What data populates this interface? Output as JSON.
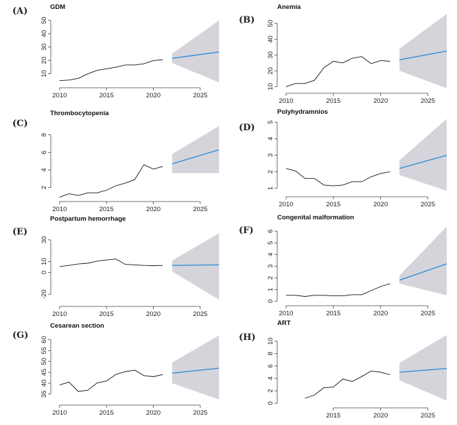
{
  "figure": {
    "title": "Forecast panels"
  },
  "colors": {
    "history": "#111111",
    "forecast": "#2b8ad8",
    "band": "#d4d4da"
  },
  "chart_data": [
    {
      "label": "(A)",
      "title": "GDM",
      "type": "line",
      "xlim": [
        2009.5,
        2027.5
      ],
      "ylim": [
        2,
        55
      ],
      "xticks": [
        2010,
        2015,
        2020,
        2025
      ],
      "yticks": [
        10,
        20,
        30,
        40,
        50
      ],
      "history": {
        "x": [
          2010,
          2011,
          2012,
          2013,
          2014,
          2015,
          2016,
          2017,
          2018,
          2019,
          2020,
          2021
        ],
        "y": [
          4.8,
          5.2,
          6.5,
          9.8,
          12.5,
          13.7,
          14.8,
          16.5,
          16.5,
          17.5,
          19.8,
          20.5
        ]
      },
      "forecast": {
        "x": [
          2022,
          2027
        ],
        "y": [
          21.5,
          26.3
        ]
      },
      "band": {
        "x": [
          2022,
          2027
        ],
        "upper": [
          25,
          50
        ],
        "lower": [
          18,
          3.5
        ]
      }
    },
    {
      "label": "(B)",
      "title": "Anemia",
      "type": "line",
      "xlim": [
        2009.5,
        2027.5
      ],
      "ylim": [
        8,
        57
      ],
      "xticks": [
        2010,
        2015,
        2020,
        2025
      ],
      "yticks": [
        10,
        20,
        30,
        40,
        50
      ],
      "history": {
        "x": [
          2010,
          2011,
          2012,
          2013,
          2014,
          2015,
          2016,
          2017,
          2018,
          2019,
          2020,
          2021
        ],
        "y": [
          10,
          12,
          12,
          14,
          22,
          26,
          25,
          28,
          29,
          24.5,
          26.5,
          26
        ]
      },
      "forecast": {
        "x": [
          2022,
          2027
        ],
        "y": [
          27,
          32.5
        ]
      },
      "band": {
        "x": [
          2022,
          2027
        ],
        "upper": [
          34,
          56
        ],
        "lower": [
          20,
          9
        ]
      }
    },
    {
      "label": "(C)",
      "title": "Thrombocytopenia",
      "type": "line",
      "xlim": [
        2009.5,
        2027.5
      ],
      "ylim": [
        0.8,
        9.3
      ],
      "xticks": [
        2010,
        2015,
        2020,
        2025
      ],
      "yticks": [
        2,
        4,
        6,
        8
      ],
      "history": {
        "x": [
          2010,
          2011,
          2012,
          2013,
          2014,
          2015,
          2016,
          2017,
          2018,
          2019,
          2020,
          2021
        ],
        "y": [
          0.9,
          1.3,
          1.1,
          1.4,
          1.4,
          1.7,
          2.2,
          2.5,
          2.9,
          4.6,
          4.1,
          4.4
        ]
      },
      "forecast": {
        "x": [
          2022,
          2027
        ],
        "y": [
          4.7,
          6.3
        ]
      },
      "band": {
        "x": [
          2022,
          2027
        ],
        "upper": [
          5.8,
          9
        ],
        "lower": [
          3.65,
          3.65
        ]
      }
    },
    {
      "label": "(D)",
      "title": "Polyhydramnios",
      "type": "line",
      "xlim": [
        2009.5,
        2027.5
      ],
      "ylim": [
        0.7,
        5.3
      ],
      "xticks": [
        2010,
        2015,
        2020,
        2025
      ],
      "yticks": [
        1,
        2,
        3,
        4,
        5
      ],
      "history": {
        "x": [
          2010,
          2011,
          2012,
          2013,
          2014,
          2015,
          2016,
          2017,
          2018,
          2019,
          2020,
          2021
        ],
        "y": [
          2.2,
          2.05,
          1.6,
          1.6,
          1.2,
          1.15,
          1.2,
          1.4,
          1.4,
          1.7,
          1.9,
          2.0
        ]
      },
      "forecast": {
        "x": [
          2022,
          2027
        ],
        "y": [
          2.2,
          3.0
        ]
      },
      "band": {
        "x": [
          2022,
          2027
        ],
        "upper": [
          2.7,
          5.2
        ],
        "lower": [
          1.8,
          0.85
        ]
      }
    },
    {
      "label": "(E)",
      "title": "Postpartum hemorrhage",
      "type": "line",
      "xlim": [
        2009.5,
        2027.5
      ],
      "ylim": [
        -28,
        40
      ],
      "xticks": [
        2010,
        2015,
        2020,
        2025
      ],
      "yticks": [
        -20,
        0,
        10,
        30
      ],
      "history": {
        "x": [
          2010,
          2011,
          2012,
          2013,
          2014,
          2015,
          2016,
          2017,
          2018,
          2019,
          2020,
          2021
        ],
        "y": [
          5.5,
          6.5,
          7.8,
          8.5,
          10.5,
          11.5,
          12.5,
          7.5,
          7.0,
          6.5,
          6.3,
          6.5
        ]
      },
      "forecast": {
        "x": [
          2022,
          2027
        ],
        "y": [
          6.5,
          7.0
        ]
      },
      "band": {
        "x": [
          2022,
          2027
        ],
        "upper": [
          11,
          36
        ],
        "lower": [
          1,
          -25
        ]
      }
    },
    {
      "label": "(F)",
      "title": "Congenital malformation",
      "type": "line",
      "xlim": [
        2009.5,
        2027.5
      ],
      "ylim": [
        -0.1,
        6.6
      ],
      "xticks": [
        2010,
        2015,
        2020,
        2025
      ],
      "yticks": [
        0,
        1,
        2,
        3,
        4,
        5,
        6
      ],
      "history": {
        "x": [
          2010,
          2011,
          2012,
          2013,
          2014,
          2015,
          2016,
          2017,
          2018,
          2019,
          2020,
          2021
        ],
        "y": [
          0.5,
          0.5,
          0.4,
          0.5,
          0.5,
          0.45,
          0.45,
          0.55,
          0.55,
          0.9,
          1.25,
          1.5
        ]
      },
      "forecast": {
        "x": [
          2022,
          2027
        ],
        "y": [
          1.8,
          3.2
        ]
      },
      "band": {
        "x": [
          2022,
          2027
        ],
        "upper": [
          2.2,
          6.4
        ],
        "lower": [
          1.5,
          0.5
        ]
      }
    },
    {
      "label": "(G)",
      "title": "Cesarean section",
      "type": "line",
      "xlim": [
        2009.5,
        2027.5
      ],
      "ylim": [
        31.5,
        63
      ],
      "xticks": [
        2010,
        2015,
        2020,
        2025
      ],
      "yticks": [
        35,
        40,
        45,
        50,
        55,
        60
      ],
      "history": {
        "x": [
          2010,
          2011,
          2012,
          2013,
          2014,
          2015,
          2016,
          2017,
          2018,
          2019,
          2020,
          2021
        ],
        "y": [
          39.2,
          40.5,
          36.2,
          36.8,
          40.1,
          41,
          44,
          45.3,
          46,
          43.5,
          43,
          44
        ]
      },
      "forecast": {
        "x": [
          2022,
          2027
        ],
        "y": [
          44.6,
          46.9
        ]
      },
      "band": {
        "x": [
          2022,
          2027
        ],
        "upper": [
          49.5,
          62
        ],
        "lower": [
          40,
          32.5
        ]
      }
    },
    {
      "label": "(H)",
      "title": "ART",
      "type": "line",
      "xlim": [
        2009.5,
        2027.5
      ],
      "ylim": [
        -0.2,
        11.3
      ],
      "xticks": [
        2015,
        2020,
        2025
      ],
      "yticks": [
        0,
        2,
        4,
        6,
        8,
        10
      ],
      "history": {
        "x": [
          2012,
          2013,
          2014,
          2015,
          2016,
          2017,
          2018,
          2019,
          2020,
          2021
        ],
        "y": [
          0.8,
          1.3,
          2.5,
          2.6,
          3.9,
          3.5,
          4.3,
          5.2,
          5.0,
          4.6
        ]
      },
      "forecast": {
        "x": [
          2022,
          2027
        ],
        "y": [
          5.0,
          5.6
        ]
      },
      "band": {
        "x": [
          2022,
          2027
        ],
        "upper": [
          6.5,
          11
        ],
        "lower": [
          3.7,
          0.4
        ]
      }
    }
  ]
}
